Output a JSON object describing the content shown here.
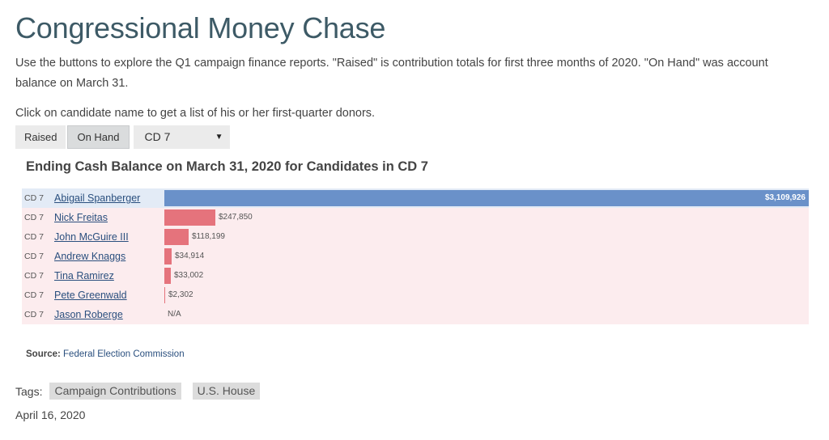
{
  "page": {
    "title": "Congressional Money Chase",
    "intro": "Use the buttons to explore the Q1 campaign finance reports. \"Raised\" is contribution totals for first three months of 2020. \"On Hand\" was account balance on March 31.",
    "instructions": "Click on candidate name to get a list of his or her first-quarter donors."
  },
  "controls": {
    "raised_label": "Raised",
    "onhand_label": "On Hand",
    "district_value": "CD 7",
    "caret": "▼"
  },
  "colors": {
    "highlight_bar": "#6a91c9",
    "bar": "#e5737c",
    "row_bg": "#fcecee",
    "highlight_row_bg": "#e3ebf6"
  },
  "chart_data": {
    "type": "bar",
    "orientation": "horizontal",
    "title": "Ending Cash Balance on March 31, 2020 for Candidates in CD 7",
    "xlim": [
      0,
      3109926
    ],
    "rows": [
      {
        "district": "CD 7",
        "name": "Abigail Spanberger",
        "value": 3109926,
        "label": "$3,109,926",
        "highlight": true
      },
      {
        "district": "CD 7",
        "name": "Nick Freitas",
        "value": 247850,
        "label": "$247,850",
        "highlight": false
      },
      {
        "district": "CD 7",
        "name": "John McGuire III",
        "value": 118199,
        "label": "$118,199",
        "highlight": false
      },
      {
        "district": "CD 7",
        "name": "Andrew Knaggs",
        "value": 34914,
        "label": "$34,914",
        "highlight": false
      },
      {
        "district": "CD 7",
        "name": "Tina Ramirez",
        "value": 33002,
        "label": "$33,002",
        "highlight": false
      },
      {
        "district": "CD 7",
        "name": "Pete Greenwald",
        "value": 2302,
        "label": "$2,302",
        "highlight": false
      },
      {
        "district": "CD 7",
        "name": "Jason Roberge",
        "value": null,
        "label": "N/A",
        "highlight": false
      }
    ]
  },
  "source": {
    "label": "Source:",
    "name": "Federal Election Commission"
  },
  "tags": {
    "label": "Tags:",
    "items": [
      "Campaign Contributions",
      "U.S. House"
    ]
  },
  "date": "April 16, 2020"
}
